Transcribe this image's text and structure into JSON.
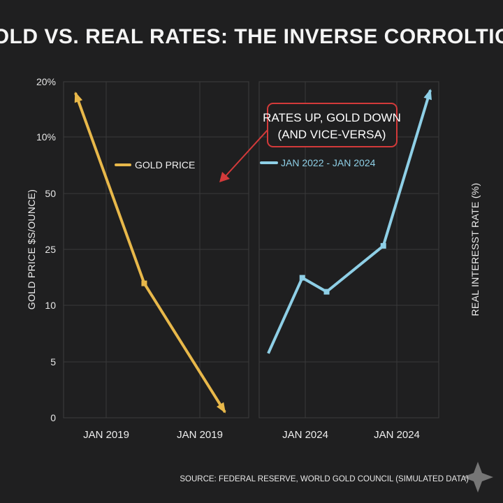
{
  "title": "GOLD VS. REAL RATES: THE INVERSE CORROLTION",
  "source": "SOURCE: FEDERAL RESERVE, WORLD GOLD COUNCIL (SIMULATED DATA)",
  "annotation": {
    "line1": "RATES UP, GOLD DOWN",
    "line2": "(AND VICE-VERSA)"
  },
  "colors": {
    "gold": "#e8b84a",
    "rates": "#8ecfe6",
    "annotation": "#d33a3a"
  },
  "chart_data": [
    {
      "type": "line",
      "name": "gold",
      "ylabel": "GOLD PRICE $S/OUNCE)",
      "ytick_labels": [
        "0",
        "5",
        "10",
        "25",
        "50",
        "10%",
        "20%"
      ],
      "xtick_labels": [
        "JAN 2019",
        "JAN 2019"
      ],
      "legend": "GOLD PRICE",
      "series": [
        {
          "name": "GOLD PRICE",
          "x": [
            0,
            0.46,
            1.0
          ],
          "y": [
            5.8,
            2.4,
            0.1
          ]
        }
      ],
      "ylim": [
        0,
        6
      ]
    },
    {
      "type": "line",
      "name": "rates",
      "ylabel": "REAL INTERESST RATE (%)",
      "xtick_labels": [
        "JAN 2024",
        "JAN 2024"
      ],
      "legend": "JAN 2022 - JAN 2024",
      "series": [
        {
          "name": "REAL INTEREST RATE",
          "x": [
            0,
            0.21,
            0.36,
            0.71,
            1.0
          ],
          "y": [
            1.15,
            2.5,
            2.25,
            3.07,
            5.85
          ]
        }
      ],
      "ylim": [
        0,
        6
      ]
    }
  ]
}
